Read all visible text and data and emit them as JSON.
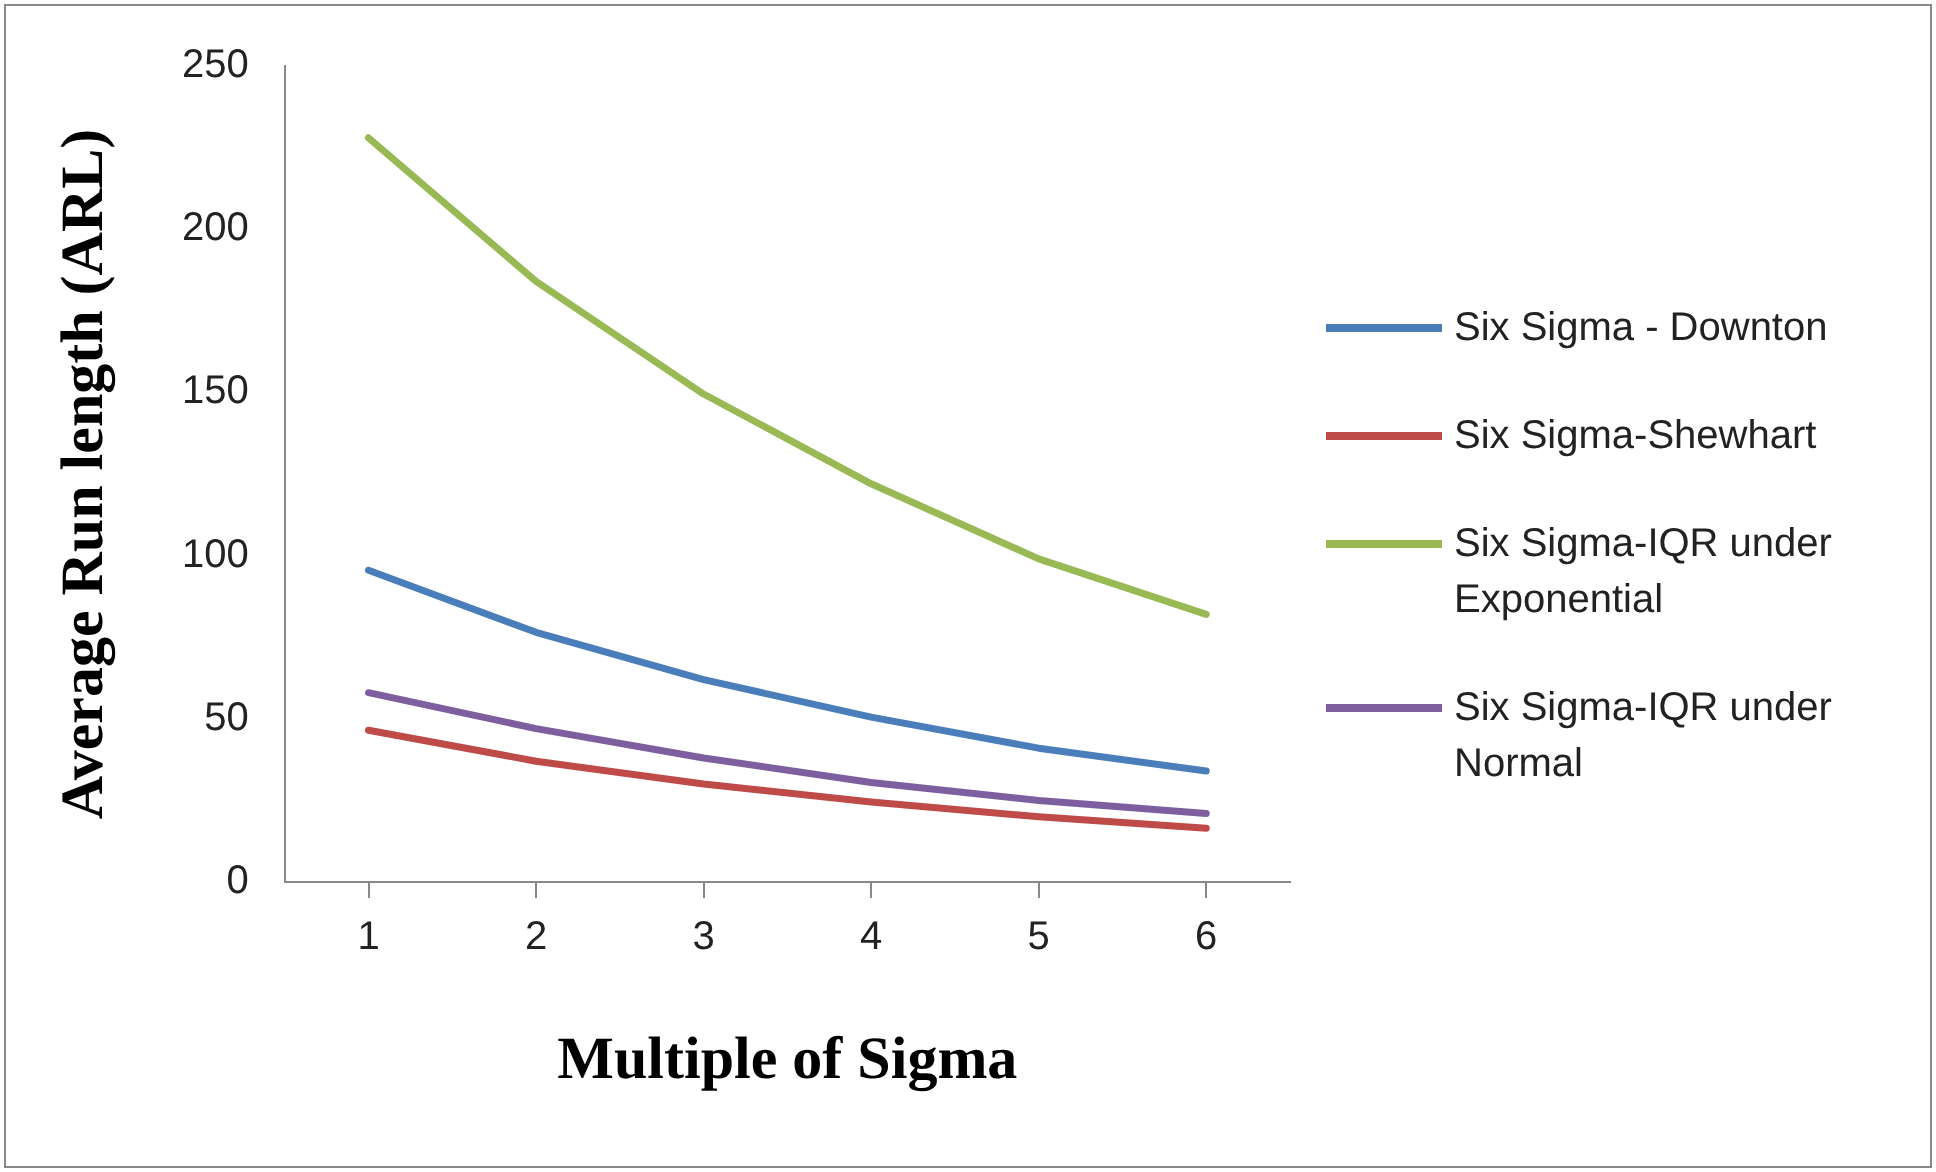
{
  "chart_data": {
    "type": "line",
    "xlabel": "Multiple of Sigma",
    "ylabel": "Average Run length (ARL)",
    "categories": [
      "1",
      "2",
      "3",
      "4",
      "5",
      "6"
    ],
    "series": [
      {
        "name": "Six Sigma - Downton",
        "color": "#4a7ebb",
        "values": [
          95.5,
          76.5,
          62,
          50.5,
          41,
          34
        ]
      },
      {
        "name": "Six Sigma-Shewhart",
        "color": "#be4b48",
        "values": [
          46.5,
          37,
          30,
          24.5,
          20,
          16.5
        ]
      },
      {
        "name": "Six Sigma-IQR under Exponential",
        "color": "#98b954",
        "values": [
          228,
          184,
          149.5,
          122,
          99,
          82
        ]
      },
      {
        "name": "Six Sigma-IQR under Normal",
        "color": "#7d5fa0",
        "values": [
          58,
          47,
          38,
          30.5,
          25,
          21
        ]
      }
    ],
    "ylim": [
      0,
      250
    ],
    "yticks": [
      0,
      50,
      100,
      150,
      200,
      250
    ],
    "grid": false,
    "legend": "right",
    "marker": "none",
    "line_style": "solid"
  }
}
